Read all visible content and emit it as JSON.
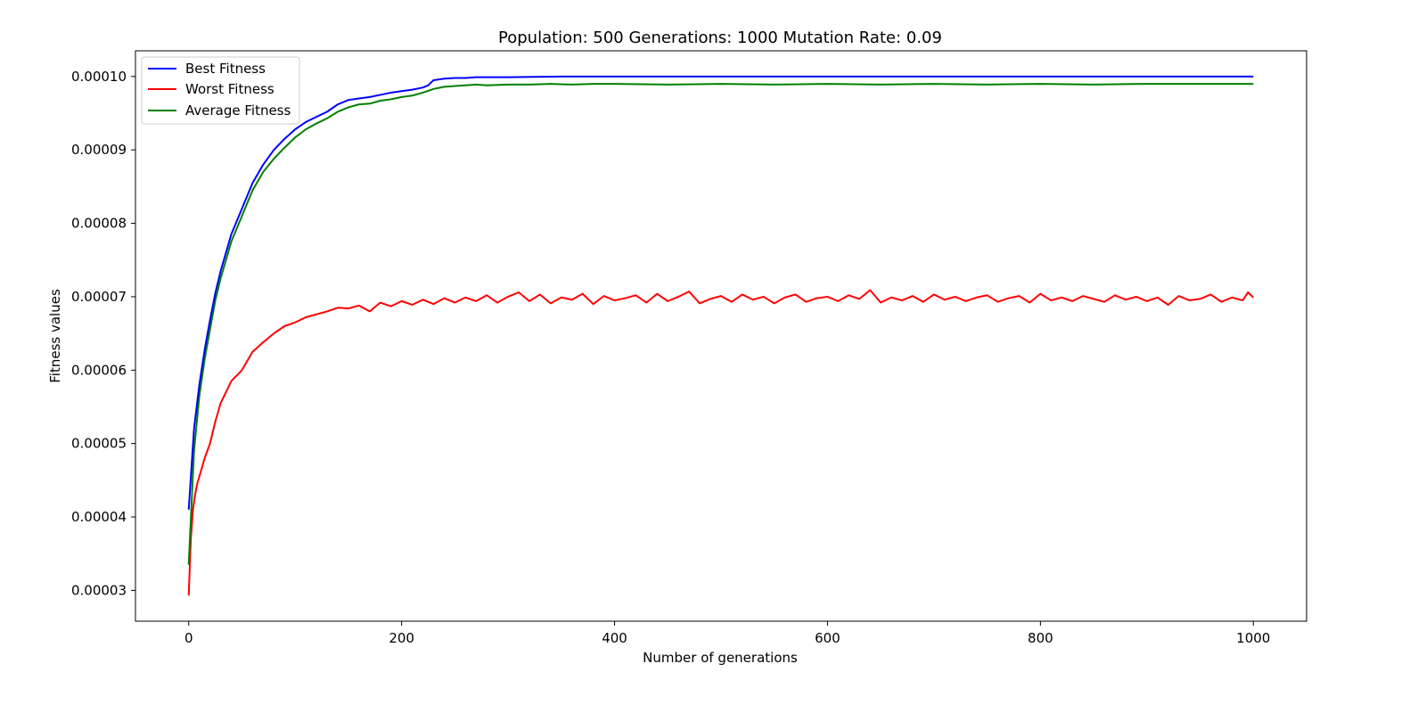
{
  "chart_data": {
    "type": "line",
    "title": "Population: 500 Generations: 1000 Mutation Rate: 0.09",
    "xlabel": "Number of generations",
    "ylabel": "Fitness values",
    "xlim": [
      -50,
      1050
    ],
    "ylim": [
      2.58e-05,
      0.0001035
    ],
    "xticks": [
      0,
      200,
      400,
      600,
      800,
      1000
    ],
    "xtick_labels": [
      "0",
      "200",
      "400",
      "600",
      "800",
      "1000"
    ],
    "yticks": [
      3e-05,
      4e-05,
      5e-05,
      6e-05,
      7e-05,
      8e-05,
      9e-05,
      0.0001
    ],
    "ytick_labels": [
      "0.00003",
      "0.00004",
      "0.00005",
      "0.00006",
      "0.00007",
      "0.00008",
      "0.00009",
      "0.00010"
    ],
    "grid": false,
    "legend_position": "top-left",
    "series": [
      {
        "name": "Best Fitness",
        "color": "#0000ff",
        "x": [
          0,
          5,
          10,
          15,
          20,
          25,
          30,
          40,
          50,
          60,
          70,
          80,
          90,
          100,
          110,
          120,
          130,
          140,
          150,
          160,
          170,
          180,
          190,
          200,
          210,
          220,
          225,
          230,
          240,
          250,
          260,
          270,
          300,
          350,
          400,
          500,
          600,
          700,
          800,
          900,
          1000
        ],
        "y": [
          4.1e-05,
          5.2e-05,
          5.8e-05,
          6.28e-05,
          6.68e-05,
          7.05e-05,
          7.35e-05,
          7.85e-05,
          8.2e-05,
          8.55e-05,
          8.8e-05,
          9e-05,
          9.15e-05,
          9.28e-05,
          9.38e-05,
          9.45e-05,
          9.52e-05,
          9.62e-05,
          9.68e-05,
          9.7e-05,
          9.72e-05,
          9.75e-05,
          9.78e-05,
          9.8e-05,
          9.82e-05,
          9.85e-05,
          9.88e-05,
          9.95e-05,
          9.97e-05,
          9.98e-05,
          9.98e-05,
          9.99e-05,
          9.99e-05,
          0.0001,
          0.0001,
          0.0001,
          0.0001,
          0.0001,
          0.0001,
          0.0001,
          0.0001
        ]
      },
      {
        "name": "Worst Fitness",
        "color": "#ff0000",
        "x": [
          0,
          2,
          4,
          6,
          8,
          10,
          15,
          20,
          25,
          30,
          35,
          40,
          50,
          60,
          70,
          80,
          90,
          100,
          110,
          120,
          130,
          140,
          150,
          160,
          170,
          180,
          190,
          200,
          210,
          220,
          230,
          240,
          250,
          260,
          270,
          280,
          290,
          300,
          310,
          320,
          330,
          340,
          350,
          360,
          370,
          380,
          390,
          400,
          410,
          420,
          430,
          440,
          450,
          460,
          470,
          480,
          490,
          500,
          510,
          520,
          530,
          540,
          550,
          560,
          570,
          580,
          590,
          600,
          610,
          620,
          630,
          640,
          650,
          660,
          670,
          680,
          690,
          700,
          710,
          720,
          730,
          740,
          750,
          760,
          770,
          780,
          790,
          800,
          810,
          820,
          830,
          840,
          850,
          860,
          870,
          880,
          890,
          900,
          910,
          920,
          930,
          940,
          950,
          960,
          970,
          980,
          990,
          995,
          1000
        ],
        "y": [
          2.93e-05,
          3.7e-05,
          4.1e-05,
          4.3e-05,
          4.45e-05,
          4.55e-05,
          4.8e-05,
          5e-05,
          5.3e-05,
          5.55e-05,
          5.7e-05,
          5.85e-05,
          6e-05,
          6.25e-05,
          6.38e-05,
          6.5e-05,
          6.6e-05,
          6.65e-05,
          6.72e-05,
          6.76e-05,
          6.8e-05,
          6.85e-05,
          6.84e-05,
          6.88e-05,
          6.8e-05,
          6.92e-05,
          6.87e-05,
          6.94e-05,
          6.89e-05,
          6.96e-05,
          6.9e-05,
          6.98e-05,
          6.92e-05,
          6.99e-05,
          6.94e-05,
          7.02e-05,
          6.92e-05,
          7e-05,
          7.06e-05,
          6.94e-05,
          7.03e-05,
          6.91e-05,
          6.99e-05,
          6.96e-05,
          7.04e-05,
          6.9e-05,
          7.01e-05,
          6.95e-05,
          6.98e-05,
          7.02e-05,
          6.92e-05,
          7.04e-05,
          6.94e-05,
          7e-05,
          7.07e-05,
          6.91e-05,
          6.97e-05,
          7.01e-05,
          6.93e-05,
          7.03e-05,
          6.96e-05,
          7e-05,
          6.91e-05,
          6.99e-05,
          7.03e-05,
          6.93e-05,
          6.98e-05,
          7e-05,
          6.94e-05,
          7.02e-05,
          6.97e-05,
          7.09e-05,
          6.92e-05,
          6.99e-05,
          6.95e-05,
          7.01e-05,
          6.93e-05,
          7.03e-05,
          6.96e-05,
          7e-05,
          6.94e-05,
          6.99e-05,
          7.02e-05,
          6.93e-05,
          6.98e-05,
          7.01e-05,
          6.92e-05,
          7.04e-05,
          6.95e-05,
          6.99e-05,
          6.94e-05,
          7.01e-05,
          6.97e-05,
          6.93e-05,
          7.02e-05,
          6.96e-05,
          7e-05,
          6.94e-05,
          6.99e-05,
          6.89e-05,
          7.01e-05,
          6.95e-05,
          6.97e-05,
          7.03e-05,
          6.93e-05,
          6.99e-05,
          6.95e-05,
          7.06e-05,
          6.99e-05
        ]
      },
      {
        "name": "Average Fitness",
        "color": "#008000",
        "x": [
          0,
          5,
          10,
          15,
          20,
          25,
          30,
          40,
          50,
          60,
          70,
          80,
          90,
          100,
          110,
          120,
          130,
          140,
          150,
          160,
          170,
          180,
          190,
          200,
          210,
          220,
          230,
          240,
          250,
          260,
          270,
          280,
          300,
          320,
          340,
          360,
          380,
          400,
          450,
          500,
          550,
          600,
          650,
          700,
          750,
          800,
          850,
          900,
          950,
          1000
        ],
        "y": [
          3.35e-05,
          4.9e-05,
          5.65e-05,
          6.15e-05,
          6.55e-05,
          6.95e-05,
          7.25e-05,
          7.75e-05,
          8.1e-05,
          8.45e-05,
          8.7e-05,
          8.88e-05,
          9.03e-05,
          9.17e-05,
          9.28e-05,
          9.36e-05,
          9.43e-05,
          9.52e-05,
          9.58e-05,
          9.62e-05,
          9.63e-05,
          9.67e-05,
          9.69e-05,
          9.72e-05,
          9.74e-05,
          9.78e-05,
          9.83e-05,
          9.86e-05,
          9.87e-05,
          9.88e-05,
          9.89e-05,
          9.88e-05,
          9.89e-05,
          9.89e-05,
          9.9e-05,
          9.89e-05,
          9.9e-05,
          9.9e-05,
          9.89e-05,
          9.9e-05,
          9.89e-05,
          9.9e-05,
          9.89e-05,
          9.9e-05,
          9.89e-05,
          9.9e-05,
          9.89e-05,
          9.9e-05,
          9.9e-05,
          9.9e-05
        ]
      }
    ]
  }
}
